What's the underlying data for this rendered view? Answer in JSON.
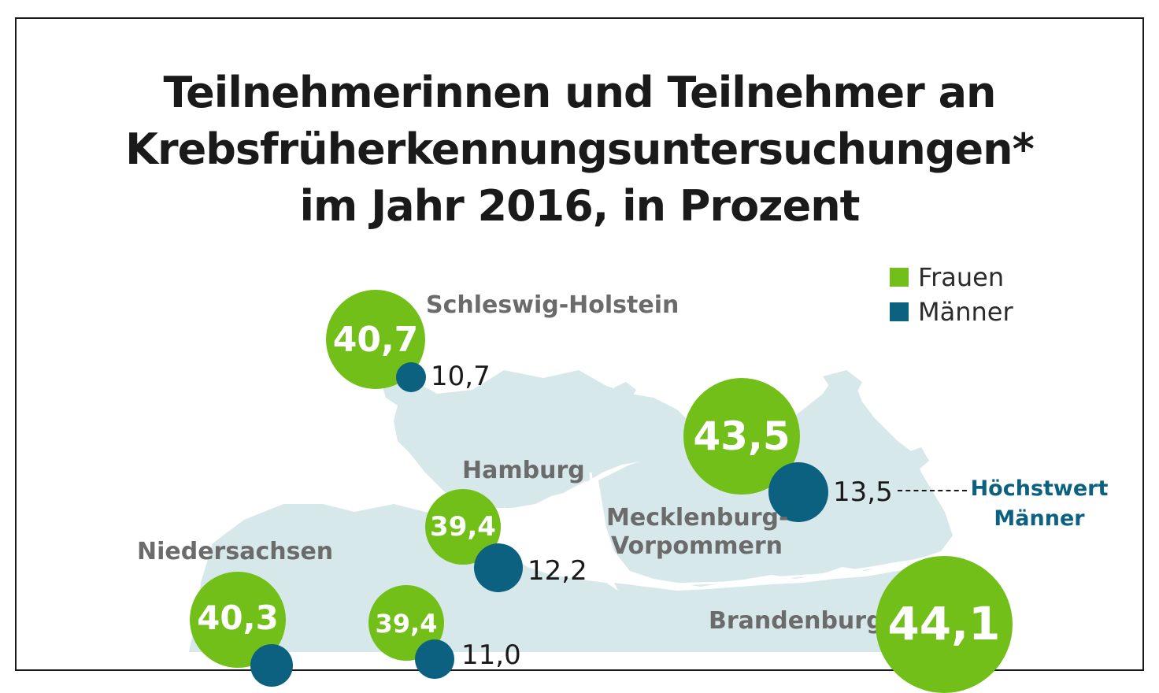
{
  "title": {
    "line1": "Teilnehmerinnen und Teilnehmer an",
    "line2": "Krebsfrüherkennungsuntersuchungen*",
    "line3": "im Jahr 2016, in Prozent"
  },
  "legend": {
    "women_label": "Frauen",
    "men_label": "Männer",
    "women_color": "#72bf1a",
    "men_color": "#0c6181"
  },
  "colors": {
    "map_fill": "#d7e8ea",
    "border": "#ffffff"
  },
  "states": {
    "schleswig_holstein": {
      "name": "Schleswig-Holstein",
      "women": "40,7",
      "men": "10,7"
    },
    "hamburg": {
      "name": "Hamburg",
      "women": "39,4",
      "men": "12,2"
    },
    "mecklenburg": {
      "name_line1": "Mecklenburg-",
      "name_line2": "Vorpommern",
      "women": "43,5",
      "men": "13,5"
    },
    "niedersachsen": {
      "name": "Niedersachsen",
      "women": "40,3",
      "men": ""
    },
    "bremen": {
      "name": "",
      "women": "39,4",
      "men_partial": "11,0"
    },
    "brandenburg": {
      "name": "Brandenburg",
      "women": "44,1"
    }
  },
  "highlight": {
    "line1": "Höchstwert",
    "line2": "Männer"
  }
}
